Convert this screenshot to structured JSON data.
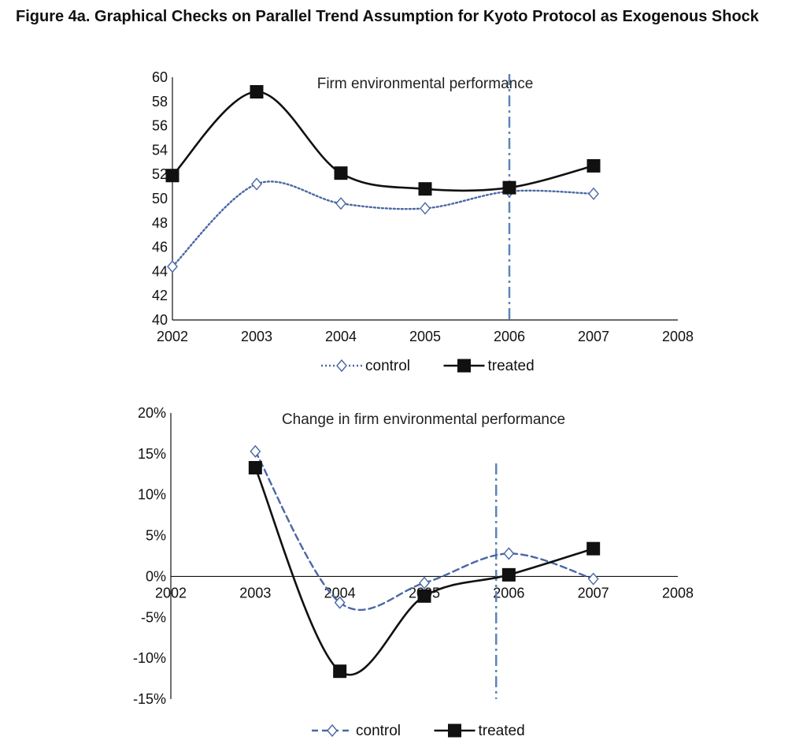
{
  "figure_title": "Figure 4a.  Graphical Checks on Parallel Trend Assumption for Kyoto Protocol as Exogenous Shock",
  "colors": {
    "control": "#4a67a6",
    "treated": "#111111",
    "vline": "#5a86b8",
    "axis": "#111111"
  },
  "chart_data": [
    {
      "type": "line",
      "title": "Firm environmental performance",
      "x_ticks": [
        "2002",
        "2003",
        "2004",
        "2005",
        "2006",
        "2007",
        "2008"
      ],
      "xlim": [
        2002,
        2008
      ],
      "ylim": [
        40,
        60
      ],
      "y_ticks": [
        40,
        42,
        44,
        46,
        48,
        50,
        52,
        54,
        56,
        58,
        60
      ],
      "y_tick_labels": [
        "40",
        "42",
        "44",
        "46",
        "48",
        "50",
        "52",
        "54",
        "56",
        "58",
        "60"
      ],
      "x_axis_value": 40,
      "vline_x": 2006,
      "legend": [
        "control",
        "treated"
      ],
      "legend_position": "bottom",
      "series": [
        {
          "name": "control",
          "style": "dotted",
          "marker": "diamond-open",
          "x": [
            2002,
            2003,
            2004,
            2005,
            2006,
            2007
          ],
          "values": [
            44.4,
            51.2,
            49.6,
            49.2,
            50.6,
            50.4
          ]
        },
        {
          "name": "treated",
          "style": "solid",
          "marker": "square-filled",
          "x": [
            2002,
            2003,
            2004,
            2005,
            2006,
            2007
          ],
          "values": [
            51.9,
            58.8,
            52.1,
            50.8,
            50.9,
            52.7
          ]
        }
      ]
    },
    {
      "type": "line",
      "title": "Change in firm environmental performance",
      "x_ticks": [
        "2002",
        "2003",
        "2004",
        "2005",
        "2006",
        "2007",
        "2008"
      ],
      "xlim": [
        2002,
        2008
      ],
      "ylim": [
        -15,
        20
      ],
      "y_ticks": [
        -15,
        -10,
        -5,
        0,
        5,
        10,
        15,
        20
      ],
      "y_tick_labels": [
        "-15%",
        "-10%",
        "-5%",
        "0%",
        "5%",
        "10%",
        "15%",
        "20%"
      ],
      "x_axis_value": 0,
      "vline_x": 2005.85,
      "legend": [
        "control",
        "treated"
      ],
      "legend_position": "bottom",
      "series": [
        {
          "name": "control",
          "style": "dashed",
          "marker": "diamond-open",
          "x": [
            2003,
            2004,
            2005,
            2006,
            2007
          ],
          "values": [
            15.3,
            -3.2,
            -0.8,
            2.8,
            -0.3
          ]
        },
        {
          "name": "treated",
          "style": "solid",
          "marker": "square-filled",
          "x": [
            2003,
            2004,
            2005,
            2006,
            2007
          ],
          "values": [
            13.3,
            -11.6,
            -2.4,
            0.2,
            3.4
          ]
        }
      ]
    }
  ]
}
